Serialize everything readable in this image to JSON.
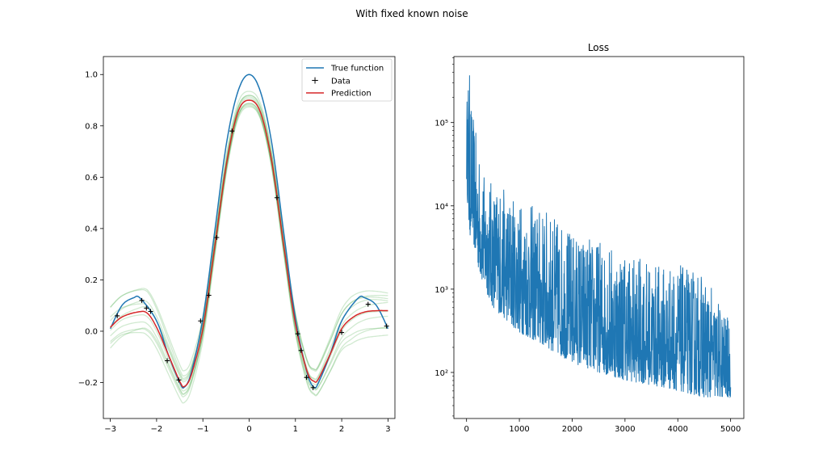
{
  "figure": {
    "suptitle": "With fixed known noise"
  },
  "colors": {
    "true_function": "#1f77b4",
    "data": "#000000",
    "prediction": "#d62728",
    "samples": "#2ca02c",
    "loss": "#1f77b4"
  },
  "chart_data": [
    {
      "type": "line",
      "title": "",
      "xlabel": "",
      "ylabel": "",
      "xlim": [
        -3.15,
        3.15
      ],
      "ylim": [
        -0.34,
        1.07
      ],
      "xticks": [
        -3,
        -2,
        -1,
        0,
        1,
        2,
        3
      ],
      "xtick_labels": [
        "−3",
        "−2",
        "−1",
        "0",
        "1",
        "2",
        "3"
      ],
      "yticks": [
        -0.2,
        0.0,
        0.2,
        0.4,
        0.6,
        0.8,
        1.0
      ],
      "ytick_labels": [
        "−0.2",
        "0.0",
        "0.2",
        "0.4",
        "0.6",
        "0.8",
        "1.0"
      ],
      "legend": {
        "placement": "upper right",
        "entries": [
          "True function",
          "Data",
          "Prediction"
        ]
      },
      "series": [
        {
          "name": "True function",
          "x": [
            -3.0,
            -2.75,
            -2.5,
            -2.35,
            -2.0,
            -1.75,
            -1.5,
            -1.4,
            -1.25,
            -1.0,
            -0.75,
            -0.5,
            -0.25,
            0.0,
            0.25,
            0.5,
            0.75,
            1.0,
            1.25,
            1.4,
            1.5,
            1.75,
            2.0,
            2.35,
            2.5,
            2.75,
            3.0
          ],
          "y": [
            0.01,
            0.1,
            0.13,
            0.128,
            0.04,
            -0.09,
            -0.2,
            -0.218,
            -0.16,
            0.05,
            0.38,
            0.72,
            0.93,
            1.0,
            0.93,
            0.72,
            0.38,
            0.05,
            -0.16,
            -0.218,
            -0.2,
            -0.09,
            0.04,
            0.128,
            0.13,
            0.1,
            0.01
          ]
        },
        {
          "name": "Data",
          "x": [
            -2.85,
            -2.32,
            -2.22,
            -2.13,
            -1.77,
            -1.52,
            -1.05,
            -0.87,
            -0.7,
            -0.37,
            0.6,
            1.05,
            1.12,
            1.24,
            1.38,
            2.0,
            2.57,
            2.97
          ],
          "y": [
            0.06,
            0.12,
            0.09,
            0.077,
            -0.115,
            -0.19,
            0.04,
            0.14,
            0.365,
            0.78,
            0.52,
            -0.01,
            -0.075,
            -0.18,
            -0.22,
            -0.005,
            0.105,
            0.02
          ]
        },
        {
          "name": "Prediction",
          "x": [
            -3.0,
            -2.75,
            -2.4,
            -2.2,
            -2.0,
            -1.75,
            -1.5,
            -1.4,
            -1.25,
            -1.0,
            -0.75,
            -0.5,
            -0.25,
            0.0,
            0.25,
            0.5,
            0.75,
            1.0,
            1.25,
            1.4,
            1.5,
            1.75,
            2.0,
            2.25,
            2.5,
            2.75,
            3.0
          ],
          "y": [
            0.015,
            0.055,
            0.075,
            0.07,
            0.015,
            -0.09,
            -0.195,
            -0.215,
            -0.17,
            0.01,
            0.32,
            0.64,
            0.85,
            0.9,
            0.85,
            0.65,
            0.33,
            0.03,
            -0.155,
            -0.195,
            -0.185,
            -0.09,
            0.01,
            0.055,
            0.075,
            0.08,
            0.08
          ]
        }
      ]
    },
    {
      "type": "line",
      "title": "Loss",
      "xlabel": "",
      "ylabel": "",
      "yscale": "log",
      "xlim": [
        -240,
        5250
      ],
      "ylim": [
        28,
        620000
      ],
      "xticks": [
        0,
        1000,
        2000,
        3000,
        4000,
        5000
      ],
      "xtick_labels": [
        "0",
        "1000",
        "2000",
        "3000",
        "4000",
        "5000"
      ],
      "yticks": [
        100,
        1000,
        10000,
        100000
      ],
      "ytick_labels": [
        "10²",
        "10³",
        "10⁴",
        "10⁵"
      ],
      "series": [
        {
          "name": "",
          "upper_envelope": {
            "x": [
              0,
              20,
              50,
              80,
              100,
              150,
              200,
              300,
              500,
              1000,
              1500,
              2000,
              2500,
              3000,
              3500,
              4000,
              4500,
              5000
            ],
            "y": [
              150000,
              400000,
              450000,
              300000,
              150000,
              100000,
              60000,
              25000,
              20000,
              12000,
              9000,
              5000,
              4000,
              3000,
              2000,
              2000,
              1500,
              400
            ]
          },
          "lower_envelope": {
            "x": [
              0,
              50,
              100,
              150,
              200,
              300,
              500,
              1000,
              1500,
              2000,
              2500,
              3000,
              3500,
              4000,
              4500,
              5000
            ],
            "y": [
              20000,
              4000,
              5000,
              3000,
              2000,
              1200,
              600,
              300,
              200,
              130,
              100,
              80,
              70,
              60,
              50,
              50
            ]
          }
        }
      ]
    }
  ]
}
